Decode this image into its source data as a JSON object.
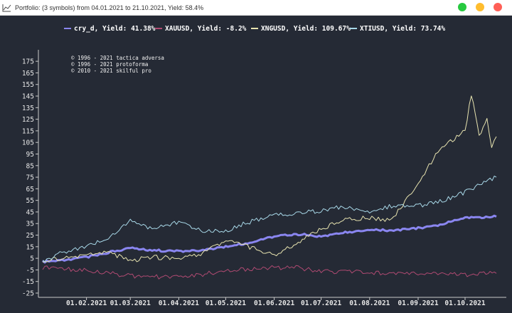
{
  "window": {
    "title": "Portfolio: (3 symbols) from 04.01.2021 to 21.10.2021, Yield: 58.4%",
    "icon": "chart-line-icon",
    "controls": [
      {
        "name": "maximize-button",
        "color": "#27c93f"
      },
      {
        "name": "minimize-button",
        "color": "#ffbd2e"
      },
      {
        "name": "close-button",
        "color": "#ff5f56"
      }
    ]
  },
  "copyright": [
    "© 1996 - 2021 tactica adversa",
    "© 1996 - 2021 protoforma",
    "© 2010 - 2021 skilful pro"
  ],
  "chart_data": {
    "type": "line",
    "title": "Portfolio: (3 symbols) from 04.01.2021 to 21.10.2021, Yield: 58.4%",
    "xlabel": "",
    "ylabel": "",
    "ylim": [
      -25,
      180
    ],
    "yticks": [
      175,
      165,
      155,
      145,
      135,
      125,
      115,
      105,
      95,
      85,
      75,
      65,
      55,
      45,
      35,
      25,
      15,
      5,
      -5,
      -15,
      -25
    ],
    "xticks": [
      "01.02.2021",
      "01.03.2021",
      "01.04.2021",
      "01.05.2021",
      "01.06.2021",
      "01.07.2021",
      "01.08.2021",
      "01.09.2021",
      "01.10.2021"
    ],
    "x_start": "04.01.2021",
    "x_end": "21.10.2021",
    "grid": false,
    "legend_position": "top",
    "background": "#252a35",
    "series": [
      {
        "name": "cry_d, Yield: 41.38%",
        "color": "#8a86f0",
        "width": 3,
        "points": [
          [
            "04.01.2021",
            2
          ],
          [
            "15.01.2021",
            3
          ],
          [
            "01.02.2021",
            6
          ],
          [
            "15.02.2021",
            10
          ],
          [
            "01.03.2021",
            14
          ],
          [
            "15.03.2021",
            12
          ],
          [
            "01.04.2021",
            11
          ],
          [
            "15.04.2021",
            12
          ],
          [
            "01.05.2021",
            15
          ],
          [
            "15.05.2021",
            18
          ],
          [
            "01.06.2021",
            24
          ],
          [
            "15.06.2021",
            26
          ],
          [
            "01.07.2021",
            24
          ],
          [
            "15.07.2021",
            27
          ],
          [
            "01.08.2021",
            30
          ],
          [
            "15.08.2021",
            29
          ],
          [
            "01.09.2021",
            31
          ],
          [
            "15.09.2021",
            34
          ],
          [
            "01.10.2021",
            40
          ],
          [
            "21.10.2021",
            41
          ]
        ]
      },
      {
        "name": "XAUUSD, Yield: -8.2%",
        "color": "#b04a72",
        "width": 1,
        "points": [
          [
            "04.01.2021",
            -3
          ],
          [
            "15.01.2021",
            -4
          ],
          [
            "01.02.2021",
            -5
          ],
          [
            "15.02.2021",
            -8
          ],
          [
            "01.03.2021",
            -10
          ],
          [
            "15.03.2021",
            -11
          ],
          [
            "01.04.2021",
            -11
          ],
          [
            "15.04.2021",
            -9
          ],
          [
            "01.05.2021",
            -6
          ],
          [
            "15.05.2021",
            -4
          ],
          [
            "01.06.2021",
            -3
          ],
          [
            "15.06.2021",
            -3
          ],
          [
            "01.07.2021",
            -6
          ],
          [
            "15.07.2021",
            -7
          ],
          [
            "01.08.2021",
            -7
          ],
          [
            "15.08.2021",
            -8
          ],
          [
            "01.09.2021",
            -8
          ],
          [
            "15.09.2021",
            -9
          ],
          [
            "01.10.2021",
            -9
          ],
          [
            "21.10.2021",
            -8
          ]
        ]
      },
      {
        "name": "XNGUSD, Yield: 109.67%",
        "color": "#e8e4b0",
        "width": 1,
        "points": [
          [
            "04.01.2021",
            3
          ],
          [
            "15.01.2021",
            5
          ],
          [
            "01.02.2021",
            8
          ],
          [
            "15.02.2021",
            10
          ],
          [
            "01.03.2021",
            3
          ],
          [
            "15.03.2021",
            6
          ],
          [
            "01.04.2021",
            5
          ],
          [
            "15.04.2021",
            9
          ],
          [
            "01.05.2021",
            20
          ],
          [
            "15.05.2021",
            15
          ],
          [
            "01.06.2021",
            8
          ],
          [
            "15.06.2021",
            18
          ],
          [
            "01.07.2021",
            30
          ],
          [
            "15.07.2021",
            38
          ],
          [
            "01.08.2021",
            40
          ],
          [
            "15.08.2021",
            38
          ],
          [
            "01.09.2021",
            70
          ],
          [
            "15.09.2021",
            100
          ],
          [
            "01.10.2021",
            115
          ],
          [
            "05.10.2021",
            147
          ],
          [
            "10.10.2021",
            110
          ],
          [
            "15.10.2021",
            125
          ],
          [
            "18.10.2021",
            100
          ],
          [
            "21.10.2021",
            110
          ]
        ]
      },
      {
        "name": "XTIUSD, Yield: 73.74%",
        "color": "#a8d8e8",
        "width": 1,
        "points": [
          [
            "04.01.2021",
            2
          ],
          [
            "15.01.2021",
            10
          ],
          [
            "01.02.2021",
            15
          ],
          [
            "15.02.2021",
            22
          ],
          [
            "01.03.2021",
            38
          ],
          [
            "15.03.2021",
            30
          ],
          [
            "01.04.2021",
            36
          ],
          [
            "15.04.2021",
            29
          ],
          [
            "01.05.2021",
            28
          ],
          [
            "15.05.2021",
            36
          ],
          [
            "01.06.2021",
            42
          ],
          [
            "15.06.2021",
            44
          ],
          [
            "01.07.2021",
            46
          ],
          [
            "15.07.2021",
            50
          ],
          [
            "01.08.2021",
            45
          ],
          [
            "15.08.2021",
            50
          ],
          [
            "01.09.2021",
            50
          ],
          [
            "15.09.2021",
            54
          ],
          [
            "01.10.2021",
            62
          ],
          [
            "21.10.2021",
            75
          ]
        ]
      }
    ]
  }
}
